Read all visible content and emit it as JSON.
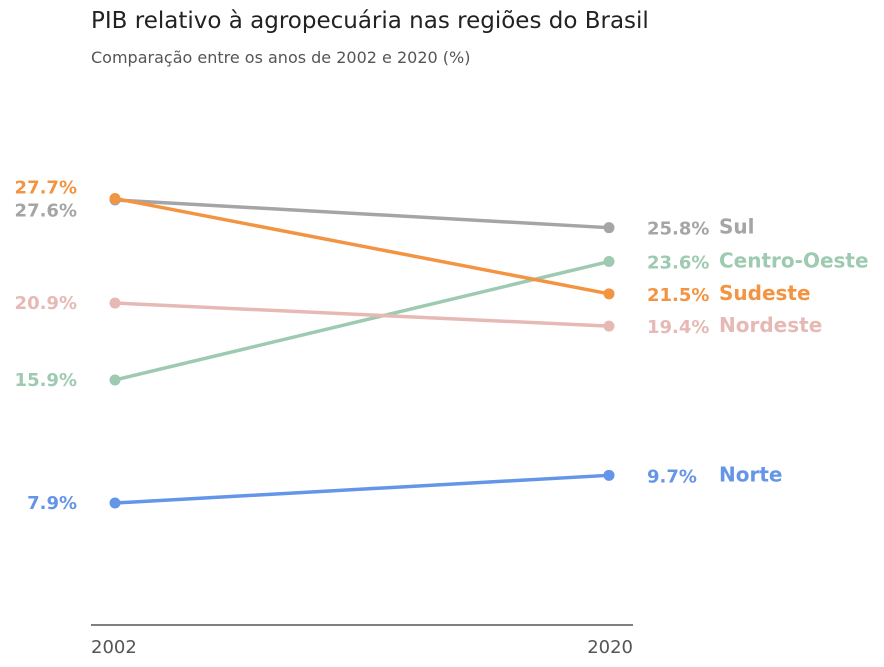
{
  "chart_data": {
    "type": "line",
    "title": "PIB relativo à agropecuária nas regiões do Brasil",
    "subtitle": "Comparação entre os anos de 2002 e 2020 (%)",
    "x": [
      "2002",
      "2020"
    ],
    "ylim": [
      0,
      30
    ],
    "grid": false,
    "legend": "none",
    "series": [
      {
        "name": "Sul",
        "values": [
          27.6,
          25.8
        ],
        "start_label": "27.6%",
        "end_label": "25.8%",
        "color": "#a5a5a5"
      },
      {
        "name": "Centro-Oeste",
        "values": [
          15.9,
          23.6
        ],
        "start_label": "15.9%",
        "end_label": "23.6%",
        "color": "#9dcab0"
      },
      {
        "name": "Sudeste",
        "values": [
          27.7,
          21.5
        ],
        "start_label": "27.7%",
        "end_label": "21.5%",
        "color": "#f39442"
      },
      {
        "name": "Nordeste",
        "values": [
          20.9,
          19.4
        ],
        "start_label": "20.9%",
        "end_label": "19.4%",
        "color": "#e6b9b5"
      },
      {
        "name": "Norte",
        "values": [
          7.9,
          9.7
        ],
        "start_label": "7.9%",
        "end_label": "9.7%",
        "color": "#6495e8"
      }
    ]
  }
}
